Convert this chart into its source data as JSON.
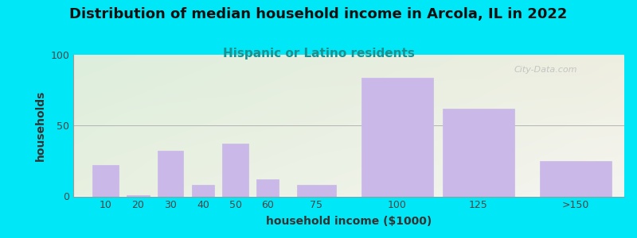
{
  "title": "Distribution of median household income in Arcola, IL in 2022",
  "subtitle": "Hispanic or Latino residents",
  "xlabel": "household income ($1000)",
  "ylabel": "households",
  "categories": [
    "10",
    "20",
    "30",
    "40",
    "50",
    "60",
    "75",
    "100",
    "125",
    ">150"
  ],
  "values": [
    22,
    1,
    32,
    8,
    37,
    12,
    8,
    84,
    62,
    25
  ],
  "bar_color": "#c9b8e8",
  "bar_edgecolor": "#c9b8e8",
  "ylim": [
    0,
    100
  ],
  "yticks": [
    0,
    50,
    100
  ],
  "background_outer": "#00e8f8",
  "bg_color_topleft": "#ddeedd",
  "bg_color_bottomright": "#f0f0e8",
  "title_fontsize": 13,
  "subtitle_fontsize": 11,
  "subtitle_color": "#1a9090",
  "axis_label_fontsize": 10,
  "tick_label_fontsize": 9,
  "watermark_text": "City-Data.com",
  "tick_positions": [
    10,
    20,
    30,
    40,
    50,
    60,
    75,
    100,
    125,
    155
  ],
  "bar_widths": [
    8,
    7,
    8,
    7,
    8,
    7,
    12,
    22,
    22,
    22
  ],
  "xlim": [
    0,
    170
  ]
}
